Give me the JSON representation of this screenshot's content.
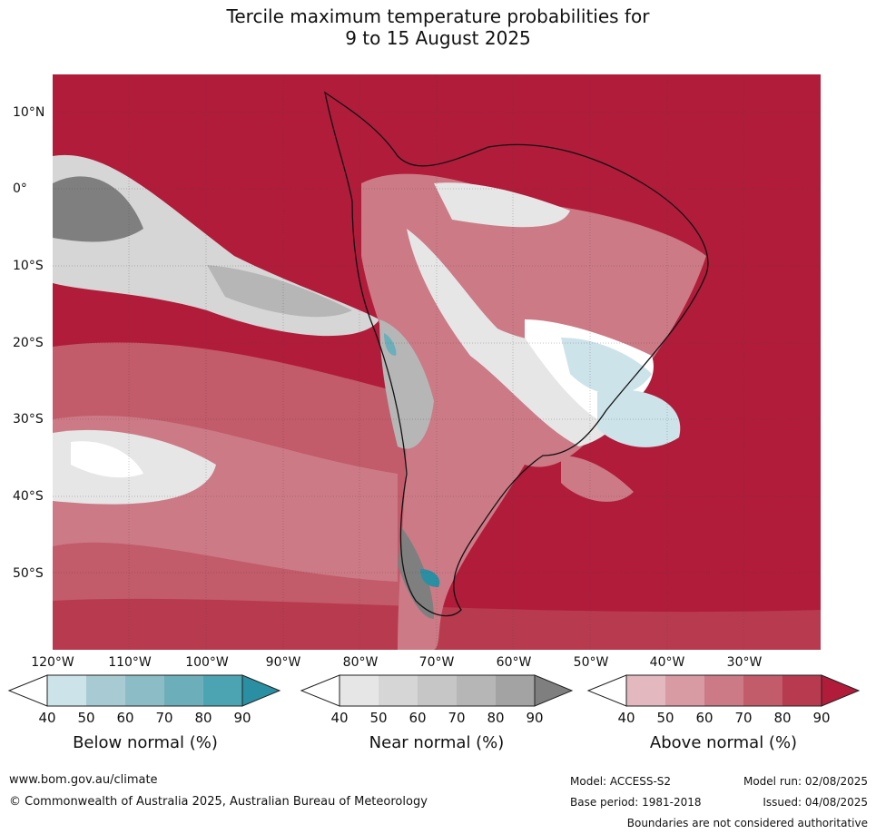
{
  "title_line1": "Tercile maximum temperature probabilities for",
  "title_line2": "9 to 15 August 2025",
  "longitude_labels": [
    "120°W",
    "110°W",
    "100°W",
    "90°W",
    "80°W",
    "70°W",
    "60°W",
    "50°W",
    "40°W",
    "30°W"
  ],
  "latitude_labels": [
    "10°N",
    "0°",
    "10°S",
    "20°S",
    "30°S",
    "40°S",
    "50°S"
  ],
  "colorbars": [
    {
      "title": "Below normal (%)",
      "ticks": [
        "40",
        "50",
        "60",
        "70",
        "80",
        "90"
      ],
      "colors": [
        "#cde3ea",
        "#a8cbd3",
        "#8cbcc6",
        "#6daebb",
        "#4ca4b3",
        "#2b8fa3"
      ]
    },
    {
      "title": "Near normal (%)",
      "ticks": [
        "40",
        "50",
        "60",
        "70",
        "80",
        "90"
      ],
      "colors": [
        "#e6e6e6",
        "#d6d6d6",
        "#c6c6c6",
        "#b6b6b6",
        "#a3a3a3",
        "#7f7f7f"
      ]
    },
    {
      "title": "Above normal (%)",
      "ticks": [
        "40",
        "50",
        "60",
        "70",
        "80",
        "90"
      ],
      "colors": [
        "#e3b8bf",
        "#d89aa3",
        "#cc7a86",
        "#c25b6a",
        "#b83a4f",
        "#b01c3a"
      ]
    }
  ],
  "footer": {
    "website": "www.bom.gov.au/climate",
    "copyright": "© Commonwealth of Australia 2025, Australian Bureau of Meteorology",
    "model": "Model: ACCESS-S2",
    "model_run": "Model run: 02/08/2025",
    "base_period": "Base period: 1981-2018",
    "issued": "Issued: 04/08/2025",
    "disclaimer": "Boundaries are not considered authoritative"
  }
}
